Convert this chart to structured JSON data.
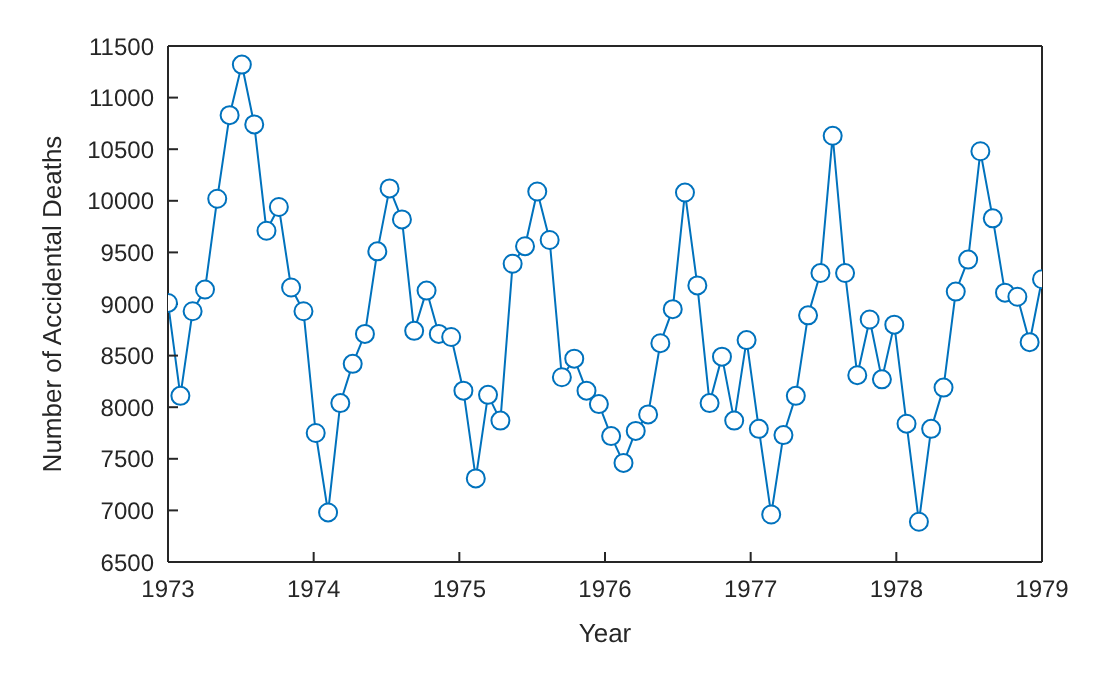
{
  "chart_data": {
    "type": "line",
    "xlabel": "Year",
    "ylabel": "Number of Accidental Deaths",
    "xlim": [
      1973,
      1979
    ],
    "xticks": [
      1973,
      1974,
      1975,
      1976,
      1977,
      1978,
      1979
    ],
    "ylim": [
      6500,
      11500
    ],
    "yticks": [
      6500,
      7000,
      7500,
      8000,
      8500,
      9000,
      9500,
      10000,
      10500,
      11000,
      11500
    ],
    "grid": false,
    "marker": "circle",
    "line_style": "solid",
    "x": [
      1973,
      1973.085,
      1973.169,
      1973.254,
      1973.338,
      1973.423,
      1973.507,
      1973.592,
      1973.676,
      1973.761,
      1973.845,
      1973.93,
      1974.014,
      1974.099,
      1974.183,
      1974.268,
      1974.352,
      1974.437,
      1974.521,
      1974.606,
      1974.69,
      1974.775,
      1974.859,
      1974.944,
      1975.028,
      1975.113,
      1975.197,
      1975.282,
      1975.366,
      1975.451,
      1975.535,
      1975.62,
      1975.704,
      1975.789,
      1975.873,
      1975.958,
      1976.042,
      1976.127,
      1976.211,
      1976.296,
      1976.38,
      1976.465,
      1976.549,
      1976.634,
      1976.718,
      1976.803,
      1976.887,
      1976.972,
      1977.056,
      1977.141,
      1977.225,
      1977.31,
      1977.394,
      1977.479,
      1977.563,
      1977.648,
      1977.732,
      1977.817,
      1977.901,
      1977.986,
      1978.07,
      1978.155,
      1978.239,
      1978.324,
      1978.408,
      1978.493,
      1978.577,
      1978.662,
      1978.746,
      1978.831,
      1978.915,
      1979
    ],
    "series": [
      {
        "color": "#0072bd",
        "values": [
          9010,
          8110,
          8930,
          9140,
          10020,
          10830,
          11320,
          10740,
          9710,
          9940,
          9160,
          8930,
          7750,
          6980,
          8040,
          8420,
          8710,
          9510,
          10120,
          9820,
          8740,
          9130,
          8710,
          8680,
          8160,
          7310,
          8120,
          7870,
          9390,
          9560,
          10090,
          9620,
          8290,
          8470,
          8160,
          8030,
          7720,
          7460,
          7770,
          7930,
          8620,
          8950,
          10080,
          9180,
          8040,
          8490,
          7870,
          8650,
          7790,
          6960,
          7730,
          8110,
          8890,
          9300,
          10630,
          9300,
          8310,
          8850,
          8270,
          8800,
          7840,
          6890,
          7790,
          8190,
          9120,
          9430,
          10480,
          9830,
          9110,
          9070,
          8630,
          9240
        ]
      }
    ]
  }
}
